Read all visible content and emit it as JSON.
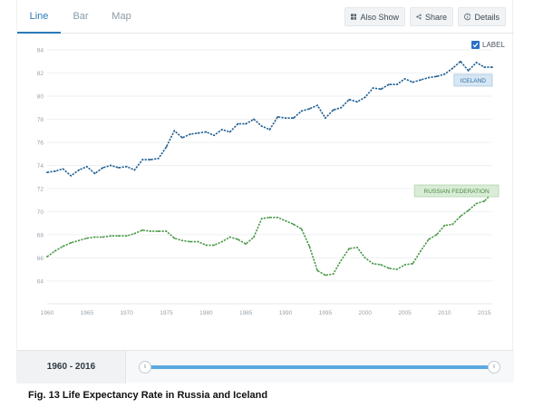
{
  "tabs": [
    {
      "label": "Line",
      "active": true
    },
    {
      "label": "Bar",
      "active": false
    },
    {
      "label": "Map",
      "active": false
    }
  ],
  "toolbar": {
    "also_show": "Also Show",
    "share": "Share",
    "details": "Details"
  },
  "label_toggle": {
    "label": "LABEL",
    "checked": true
  },
  "range": {
    "label": "1960 - 2016",
    "start": 1960,
    "end": 2016
  },
  "caption": "Fig. 13 Life Expectancy Rate in Russia and Iceland",
  "colors": {
    "iceland": "#1f5f93",
    "russia": "#4a9a48",
    "accent": "#2a7ab8"
  },
  "chart_data": {
    "type": "line",
    "title": "",
    "xlabel": "",
    "ylabel": "",
    "xlim": [
      1960,
      2016
    ],
    "ylim": [
      62.5,
      84
    ],
    "x_ticks": [
      1960,
      1965,
      1970,
      1975,
      1980,
      1985,
      1990,
      1995,
      2000,
      2005,
      2010,
      2015
    ],
    "y_ticks": [
      64,
      66,
      68,
      70,
      72,
      74,
      76,
      78,
      80,
      82,
      84
    ],
    "grid": true,
    "x": [
      1960,
      1961,
      1962,
      1963,
      1964,
      1965,
      1966,
      1967,
      1968,
      1969,
      1970,
      1971,
      1972,
      1973,
      1974,
      1975,
      1976,
      1977,
      1978,
      1979,
      1980,
      1981,
      1982,
      1983,
      1984,
      1985,
      1986,
      1987,
      1988,
      1989,
      1990,
      1991,
      1992,
      1993,
      1994,
      1995,
      1996,
      1997,
      1998,
      1999,
      2000,
      2001,
      2002,
      2003,
      2004,
      2005,
      2006,
      2007,
      2008,
      2009,
      2010,
      2011,
      2012,
      2013,
      2014,
      2015,
      2016
    ],
    "series": [
      {
        "name": "ICELAND",
        "values": [
          73.4,
          73.5,
          73.7,
          73.1,
          73.6,
          73.9,
          73.3,
          73.8,
          74.0,
          73.8,
          73.9,
          73.6,
          74.5,
          74.5,
          74.6,
          75.6,
          77.0,
          76.4,
          76.7,
          76.8,
          76.9,
          76.6,
          77.1,
          76.9,
          77.6,
          77.6,
          78.0,
          77.4,
          77.1,
          78.2,
          78.1,
          78.1,
          78.7,
          78.9,
          79.2,
          78.1,
          78.8,
          79.0,
          79.7,
          79.5,
          79.9,
          80.7,
          80.6,
          81.0,
          81.0,
          81.5,
          81.2,
          81.4,
          81.6,
          81.7,
          81.9,
          82.4,
          83.0,
          82.2,
          82.9,
          82.5,
          82.5
        ],
        "label_box": "ICELAND"
      },
      {
        "name": "RUSSIAN FEDERATION",
        "values": [
          66.1,
          66.6,
          67.0,
          67.3,
          67.5,
          67.7,
          67.8,
          67.8,
          67.9,
          67.9,
          67.9,
          68.1,
          68.4,
          68.3,
          68.3,
          68.3,
          67.7,
          67.5,
          67.4,
          67.4,
          67.1,
          67.1,
          67.4,
          67.8,
          67.6,
          67.2,
          67.8,
          69.4,
          69.5,
          69.5,
          69.2,
          68.9,
          68.5,
          67.0,
          64.9,
          64.5,
          64.6,
          65.8,
          66.8,
          66.9,
          66.0,
          65.5,
          65.4,
          65.1,
          65.0,
          65.4,
          65.5,
          66.6,
          67.6,
          68.0,
          68.8,
          68.9,
          69.6,
          70.1,
          70.7,
          70.9,
          71.6
        ],
        "label_box": "RUSSIAN FEDERATION"
      }
    ]
  }
}
